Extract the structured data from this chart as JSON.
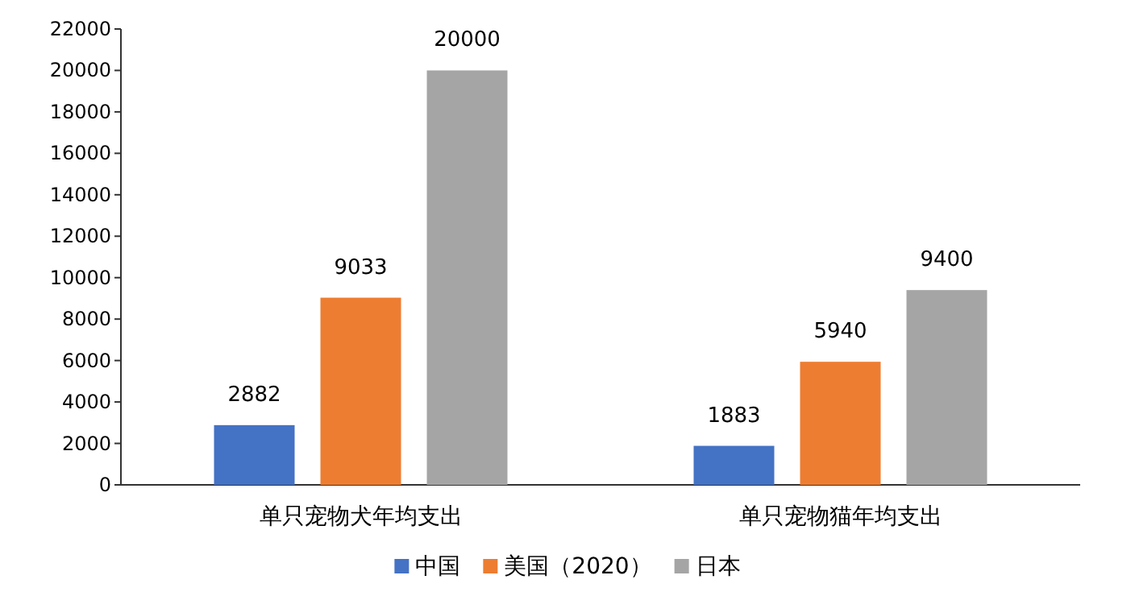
{
  "chart_data": {
    "type": "bar",
    "categories": [
      "单只宠物犬年均支出",
      "单只宠物猫年均支出"
    ],
    "series": [
      {
        "name": "中国",
        "color": "#4472c4",
        "values": [
          2882,
          1883
        ]
      },
      {
        "name": "美国（2020）",
        "color": "#ed7d31",
        "values": [
          9033,
          5940
        ]
      },
      {
        "name": "日本",
        "color": "#a5a5a5",
        "values": [
          20000,
          9400
        ]
      }
    ],
    "ylim": [
      0,
      22000
    ],
    "yticks": [
      0,
      2000,
      4000,
      6000,
      8000,
      10000,
      12000,
      14000,
      16000,
      18000,
      20000,
      22000
    ],
    "data_labels": true,
    "legend": "bottom"
  }
}
